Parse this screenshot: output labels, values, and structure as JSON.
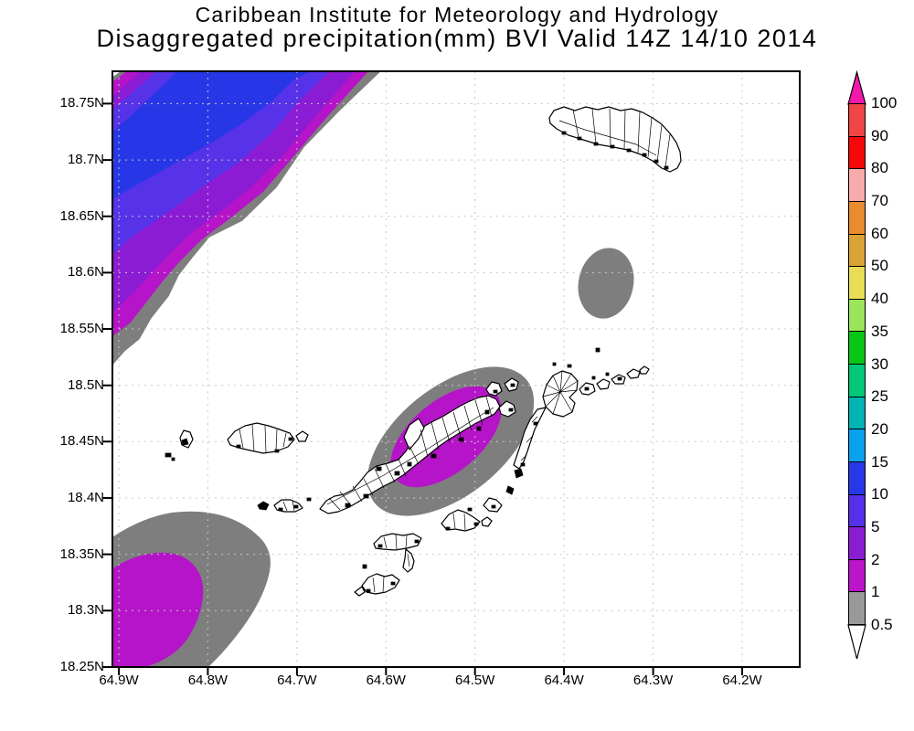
{
  "title": {
    "line1": "Caribbean Institute for Meteorology and Hydrology",
    "line2": "Disaggregated precipitation(mm) BVI Valid 14Z 14/10 2014"
  },
  "map": {
    "y_axis_labels": [
      "18.75N",
      "18.7N",
      "18.65N",
      "18.6N",
      "18.55N",
      "18.5N",
      "18.45N",
      "18.4N",
      "18.35N",
      "18.3N",
      "18.25N"
    ],
    "x_axis_labels": [
      "64.9W",
      "64.8W",
      "64.7W",
      "64.6W",
      "64.5W",
      "64.4W",
      "64.3W",
      "64.2W"
    ]
  },
  "colorbar": {
    "labels_top_to_bottom": [
      "100",
      "90",
      "80",
      "70",
      "60",
      "50",
      "40",
      "35",
      "30",
      "25",
      "20",
      "15",
      "10",
      "5",
      "2",
      "1",
      "0.5"
    ],
    "segment_colors_top_to_bottom": [
      "#ef4545",
      "#f70808",
      "#f7abab",
      "#e98b2e",
      "#d9a434",
      "#e8dd55",
      "#9ae55a",
      "#0ac614",
      "#00c878",
      "#00b4b4",
      "#0aa0f0",
      "#2838e8",
      "#5530e8",
      "#8c1cd4",
      "#bc14c8",
      "#999999"
    ],
    "over_arrow_color": "#f318ac",
    "under_arrow_color": "#ffffff"
  },
  "chart_data": {
    "type": "contour-map",
    "units": "mm",
    "levels": [
      0.5,
      1,
      2,
      5,
      10,
      15,
      20,
      25,
      30,
      35,
      40,
      50,
      60,
      70,
      80,
      90,
      100
    ],
    "shade_colors_low_to_high": [
      "#7e7e7e",
      "#b514c9",
      "#8c1cd4",
      "#5632e8",
      "#2737e7"
    ],
    "shaded_regions": [
      {
        "name": "northwest-diagonal-band",
        "max_shade": "10-15",
        "location": "upper-left corner, NE-SW oriented band"
      },
      {
        "name": "central-cell",
        "max_shade": "1-2",
        "location": "gray cell with magenta core over central islands"
      },
      {
        "name": "southwest-cell",
        "max_shade": "1-2",
        "location": "bottom-left corner, gray with magenta core"
      },
      {
        "name": "small-gray-cell",
        "max_shade": "0.5-1",
        "location": "upper right of center"
      }
    ]
  }
}
